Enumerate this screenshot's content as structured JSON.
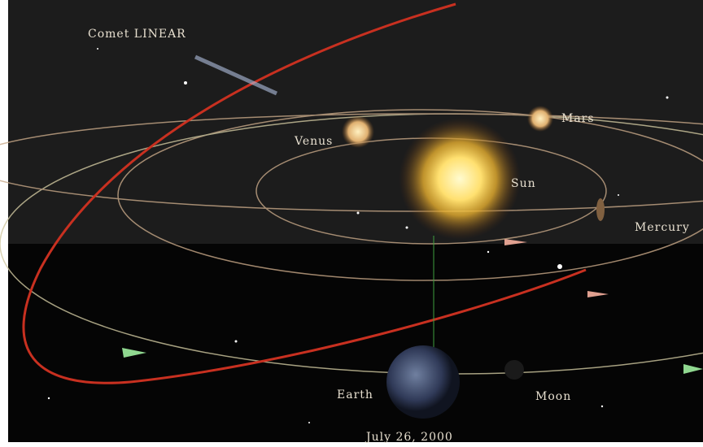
{
  "labels": {
    "comet": "Comet LINEAR",
    "venus": "Venus",
    "mars": "Mars",
    "sun": "Sun",
    "mercury": "Mercury",
    "earth": "Earth",
    "moon": "Moon",
    "date": "July 26, 2000"
  }
}
